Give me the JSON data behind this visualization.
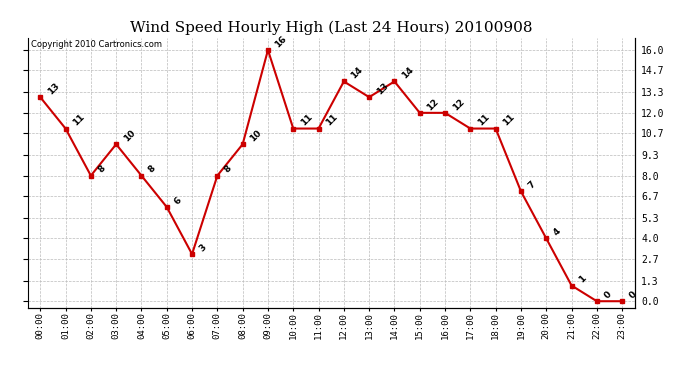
{
  "title": "Wind Speed Hourly High (Last 24 Hours) 20100908",
  "copyright_text": "Copyright 2010 Cartronics.com",
  "hours": [
    "00:00",
    "01:00",
    "02:00",
    "03:00",
    "04:00",
    "05:00",
    "06:00",
    "07:00",
    "08:00",
    "09:00",
    "10:00",
    "11:00",
    "12:00",
    "13:00",
    "14:00",
    "15:00",
    "16:00",
    "17:00",
    "18:00",
    "19:00",
    "20:00",
    "21:00",
    "22:00",
    "23:00"
  ],
  "values": [
    13,
    11,
    8,
    10,
    8,
    6,
    3,
    8,
    10,
    16,
    11,
    11,
    14,
    13,
    14,
    12,
    12,
    11,
    11,
    7,
    4,
    1,
    0,
    0
  ],
  "line_color": "#cc0000",
  "marker_color": "#cc0000",
  "bg_color": "#ffffff",
  "grid_color": "#bbbbbb",
  "title_fontsize": 11,
  "label_fontsize": 7,
  "y_ticks": [
    0.0,
    1.3,
    2.7,
    4.0,
    5.3,
    6.7,
    8.0,
    9.3,
    10.7,
    12.0,
    13.3,
    14.7,
    16.0
  ],
  "ylim": [
    -0.4,
    16.8
  ],
  "xlim": [
    -0.5,
    23.5
  ]
}
